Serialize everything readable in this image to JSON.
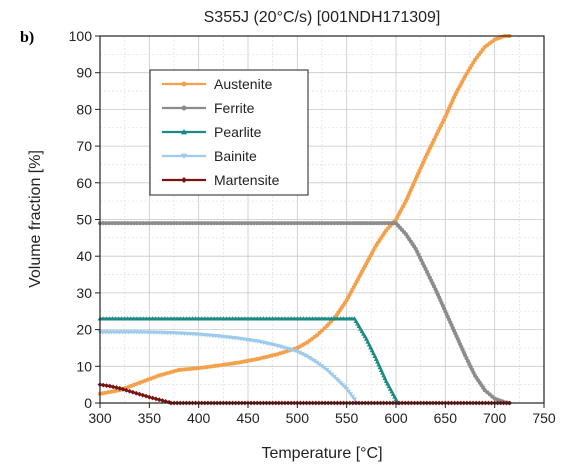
{
  "chart_data": {
    "type": "line",
    "panel_label": "b)",
    "title": "S355J (20°C/s) [001NDH171309]",
    "xlabel": "Temperature [°C]",
    "ylabel": "Volume fraction [%]",
    "xlim": [
      300,
      750
    ],
    "ylim": [
      0,
      100
    ],
    "xticks": [
      300,
      350,
      400,
      450,
      500,
      550,
      600,
      650,
      700,
      750
    ],
    "yticks": [
      0,
      10,
      20,
      30,
      40,
      50,
      60,
      70,
      80,
      90,
      100
    ],
    "grid": true,
    "legend_position": "top-left",
    "series": [
      {
        "name": "Austenite",
        "color": "#f5a04a",
        "marker": "circle",
        "x": [
          300,
          320,
          340,
          360,
          380,
          400,
          420,
          440,
          460,
          480,
          500,
          510,
          520,
          530,
          540,
          550,
          560,
          570,
          580,
          590,
          600,
          610,
          620,
          630,
          640,
          650,
          660,
          670,
          680,
          690,
          700,
          710,
          715
        ],
        "y": [
          2.5,
          3.5,
          5.5,
          7.5,
          9,
          9.5,
          10.2,
          11,
          12,
          13.3,
          15,
          16.5,
          18.5,
          21,
          24,
          28,
          33,
          38,
          43,
          47,
          50,
          55,
          61,
          67,
          72.5,
          78,
          84,
          89,
          93.5,
          97,
          99,
          100,
          100
        ]
      },
      {
        "name": "Ferrite",
        "color": "#8c8c8c",
        "marker": "circle",
        "x": [
          300,
          350,
          400,
          450,
          500,
          550,
          595,
          600,
          610,
          620,
          630,
          640,
          650,
          660,
          670,
          680,
          690,
          700,
          710,
          715
        ],
        "y": [
          49,
          49,
          49,
          49,
          49,
          49,
          49,
          49,
          46,
          42,
          36.5,
          31,
          25,
          19,
          13,
          7.5,
          3.5,
          1.2,
          0.2,
          0
        ]
      },
      {
        "name": "Pearlite",
        "color": "#1a8a82",
        "marker": "triangle-up",
        "x": [
          300,
          350,
          400,
          450,
          500,
          550,
          558,
          570,
          580,
          590,
          600,
          602
        ],
        "y": [
          23,
          23,
          23,
          23,
          23,
          23,
          23,
          17.5,
          12,
          6,
          1,
          0
        ]
      },
      {
        "name": "Bainite",
        "color": "#9ecaec",
        "marker": "triangle-down",
        "x": [
          300,
          320,
          340,
          360,
          380,
          400,
          420,
          440,
          460,
          480,
          500,
          510,
          520,
          530,
          540,
          550,
          558,
          560
        ],
        "y": [
          19.3,
          19.3,
          19.3,
          19.2,
          19,
          18.7,
          18.2,
          17.6,
          16.8,
          15.6,
          14,
          12.7,
          11,
          9,
          6.5,
          3.8,
          1,
          0
        ]
      },
      {
        "name": "Martensite",
        "color": "#7a1414",
        "marker": "diamond",
        "x": [
          300,
          310,
          320,
          330,
          340,
          350,
          360,
          370,
          372,
          400,
          450,
          500,
          550,
          600,
          650,
          700,
          715
        ],
        "y": [
          5,
          4.6,
          4,
          3.2,
          2.4,
          1.6,
          0.9,
          0.2,
          0,
          0,
          0,
          0,
          0,
          0,
          0,
          0,
          0
        ]
      }
    ]
  }
}
